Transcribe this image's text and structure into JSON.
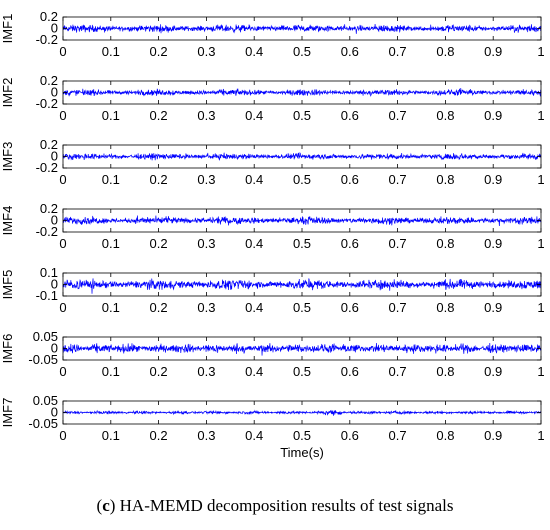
{
  "caption": {
    "prefix": "(",
    "letter": "c",
    "suffix": ") HA-MEMD decomposition results of test signals"
  },
  "colors": {
    "signal": "#0000ff",
    "axes": "#000000",
    "background": "#ffffff"
  },
  "chart_data": {
    "type": "line",
    "xlabel": "Time(s)",
    "xlim": [
      0,
      1
    ],
    "x_ticks": [
      0,
      0.1,
      0.2,
      0.3,
      0.4,
      0.5,
      0.6,
      0.7,
      0.8,
      0.9,
      1
    ],
    "x_tick_labels": [
      "0",
      "0.1",
      "0.2",
      "0.3",
      "0.4",
      "0.5",
      "0.6",
      "0.7",
      "0.8",
      "0.9",
      "1"
    ],
    "grid": false,
    "panels": [
      {
        "ylabel": "IMF1",
        "ylim": [
          -0.2,
          0.2
        ],
        "y_ticks": [
          0.2,
          0,
          -0.2
        ],
        "y_tick_labels": [
          "0.2",
          "0",
          "-0.2"
        ],
        "typical_amplitude": 0.06,
        "peak_amplitude": 0.13
      },
      {
        "ylabel": "IMF2",
        "ylim": [
          -0.2,
          0.2
        ],
        "y_ticks": [
          0.2,
          0,
          -0.2
        ],
        "y_tick_labels": [
          "0.2",
          "0",
          "-0.2"
        ],
        "typical_amplitude": 0.05,
        "peak_amplitude": 0.1
      },
      {
        "ylabel": "IMF3",
        "ylim": [
          -0.2,
          0.2
        ],
        "y_ticks": [
          0.2,
          0,
          -0.2
        ],
        "y_tick_labels": [
          "0.2",
          "0",
          "-0.2"
        ],
        "typical_amplitude": 0.05,
        "peak_amplitude": 0.09
      },
      {
        "ylabel": "IMF4",
        "ylim": [
          -0.2,
          0.2
        ],
        "y_ticks": [
          0.2,
          0,
          -0.2
        ],
        "y_tick_labels": [
          "0.2",
          "0",
          "-0.2"
        ],
        "typical_amplitude": 0.06,
        "peak_amplitude": 0.1
      },
      {
        "ylabel": "IMF5",
        "ylim": [
          -0.1,
          0.1
        ],
        "y_ticks": [
          0.1,
          0,
          -0.1
        ],
        "y_tick_labels": [
          "0.1",
          "0",
          "-0.1"
        ],
        "typical_amplitude": 0.04,
        "peak_amplitude": 0.08
      },
      {
        "ylabel": "IMF6",
        "ylim": [
          -0.05,
          0.05
        ],
        "y_ticks": [
          0.05,
          0,
          -0.05
        ],
        "y_tick_labels": [
          "0.05",
          "0",
          "-0.05"
        ],
        "typical_amplitude": 0.018,
        "peak_amplitude": 0.035
      },
      {
        "ylabel": "IMF7",
        "ylim": [
          -0.05,
          0.05
        ],
        "y_ticks": [
          0.05,
          0,
          -0.05
        ],
        "y_tick_labels": [
          "0.05",
          "0",
          "-0.05"
        ],
        "typical_amplitude": 0.006,
        "peak_amplitude": 0.014
      }
    ]
  }
}
